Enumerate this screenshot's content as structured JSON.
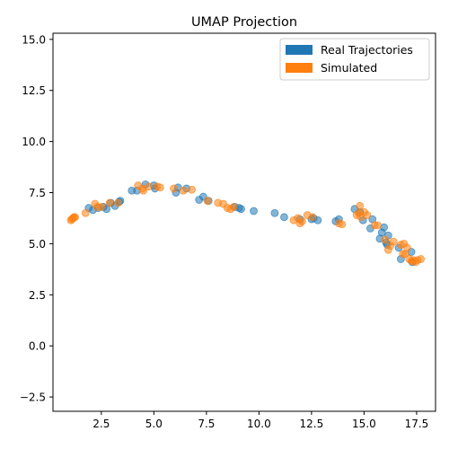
{
  "chart_data": {
    "type": "scatter",
    "title": "UMAP Projection",
    "xlabel": "",
    "ylabel": "",
    "xlim": [
      0.2,
      18.4
    ],
    "ylim": [
      -3.2,
      15.3
    ],
    "xticks": [
      2.5,
      5.0,
      7.5,
      10.0,
      12.5,
      15.0,
      17.5
    ],
    "xtick_labels": [
      "2.5",
      "5.0",
      "7.5",
      "10.0",
      "12.5",
      "15.0",
      "17.5"
    ],
    "yticks": [
      -2.5,
      0.0,
      2.5,
      5.0,
      7.5,
      10.0,
      12.5,
      15.0
    ],
    "ytick_labels": [
      "−2.5",
      "0.0",
      "2.5",
      "5.0",
      "7.5",
      "10.0",
      "12.5",
      "15.0"
    ],
    "grid": false,
    "legend_position": "top-right",
    "series": [
      {
        "name": "Real Trajectories",
        "color": "#1f77b4",
        "points": [
          [
            1.9,
            6.75
          ],
          [
            2.1,
            6.65
          ],
          [
            2.35,
            6.75
          ],
          [
            2.6,
            6.8
          ],
          [
            2.75,
            6.7
          ],
          [
            2.95,
            7.0
          ],
          [
            3.15,
            6.85
          ],
          [
            3.35,
            7.05
          ],
          [
            3.4,
            7.1
          ],
          [
            3.95,
            7.6
          ],
          [
            4.2,
            7.6
          ],
          [
            4.6,
            7.9
          ],
          [
            5.0,
            7.85
          ],
          [
            5.05,
            7.7
          ],
          [
            6.05,
            7.5
          ],
          [
            6.15,
            7.75
          ],
          [
            6.55,
            7.7
          ],
          [
            7.15,
            7.15
          ],
          [
            7.35,
            7.3
          ],
          [
            7.6,
            7.1
          ],
          [
            8.85,
            6.8
          ],
          [
            9.05,
            6.75
          ],
          [
            9.15,
            6.7
          ],
          [
            9.75,
            6.6
          ],
          [
            10.75,
            6.5
          ],
          [
            11.2,
            6.3
          ],
          [
            11.95,
            6.2
          ],
          [
            12.5,
            6.2
          ],
          [
            12.6,
            6.25
          ],
          [
            12.8,
            6.15
          ],
          [
            13.65,
            6.1
          ],
          [
            13.8,
            6.2
          ],
          [
            14.55,
            6.7
          ],
          [
            14.8,
            6.55
          ],
          [
            14.95,
            6.15
          ],
          [
            15.3,
            5.75
          ],
          [
            15.4,
            6.2
          ],
          [
            15.75,
            5.25
          ],
          [
            15.85,
            5.55
          ],
          [
            15.95,
            5.8
          ],
          [
            16.05,
            5.05
          ],
          [
            16.1,
            4.95
          ],
          [
            16.15,
            5.4
          ],
          [
            16.65,
            4.8
          ],
          [
            16.75,
            4.25
          ],
          [
            17.25,
            4.6
          ],
          [
            17.3,
            4.1
          ]
        ]
      },
      {
        "name": "Simulated",
        "color": "#ff7f0e",
        "points": [
          [
            1.05,
            6.15
          ],
          [
            1.1,
            6.2
          ],
          [
            1.15,
            6.25
          ],
          [
            1.2,
            6.3
          ],
          [
            1.25,
            6.3
          ],
          [
            1.75,
            6.5
          ],
          [
            2.2,
            6.95
          ],
          [
            2.3,
            6.8
          ],
          [
            2.5,
            6.8
          ],
          [
            2.9,
            7.0
          ],
          [
            3.3,
            7.0
          ],
          [
            4.25,
            7.85
          ],
          [
            4.45,
            7.7
          ],
          [
            4.5,
            7.6
          ],
          [
            4.75,
            7.8
          ],
          [
            5.15,
            7.8
          ],
          [
            5.3,
            7.75
          ],
          [
            5.95,
            7.7
          ],
          [
            6.4,
            7.6
          ],
          [
            6.8,
            7.65
          ],
          [
            7.55,
            7.1
          ],
          [
            8.05,
            7.0
          ],
          [
            8.3,
            6.95
          ],
          [
            8.5,
            6.75
          ],
          [
            8.65,
            6.7
          ],
          [
            8.8,
            6.8
          ],
          [
            11.65,
            6.15
          ],
          [
            11.85,
            6.25
          ],
          [
            11.95,
            6.0
          ],
          [
            12.05,
            6.1
          ],
          [
            12.3,
            6.4
          ],
          [
            12.55,
            6.3
          ],
          [
            13.8,
            6.0
          ],
          [
            13.95,
            5.95
          ],
          [
            14.65,
            6.4
          ],
          [
            14.75,
            6.5
          ],
          [
            14.8,
            6.85
          ],
          [
            14.85,
            6.3
          ],
          [
            15.0,
            6.55
          ],
          [
            15.15,
            6.4
          ],
          [
            15.5,
            5.9
          ],
          [
            15.65,
            5.9
          ],
          [
            16.0,
            5.2
          ],
          [
            16.15,
            4.7
          ],
          [
            16.25,
            4.9
          ],
          [
            16.4,
            5.1
          ],
          [
            16.75,
            4.95
          ],
          [
            16.85,
            4.5
          ],
          [
            16.9,
            5.0
          ],
          [
            16.95,
            4.5
          ],
          [
            17.05,
            4.8
          ],
          [
            17.15,
            4.25
          ],
          [
            17.25,
            4.15
          ],
          [
            17.35,
            4.2
          ],
          [
            17.45,
            4.1
          ],
          [
            17.55,
            4.2
          ],
          [
            17.7,
            4.25
          ]
        ]
      }
    ]
  }
}
